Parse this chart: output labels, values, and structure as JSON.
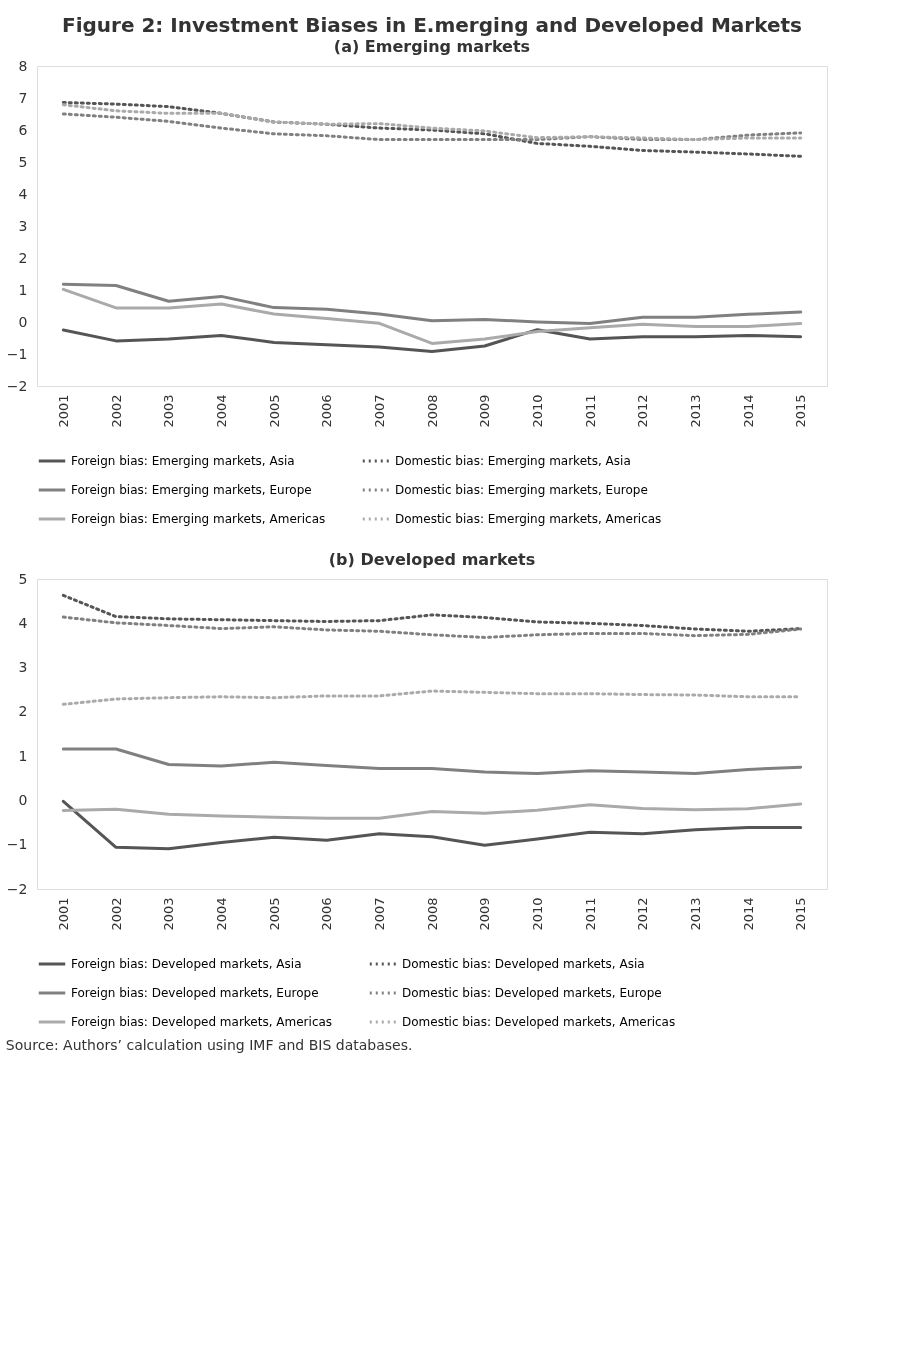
{
  "chart_data": [
    {
      "type": "line",
      "title": "Figure 2: Investment Biases in E.merging and Developed Markets",
      "subtitle": "(a) Emerging markets",
      "categories": [
        "2001",
        "2002",
        "2003",
        "2004",
        "2005",
        "2006",
        "2007",
        "2008",
        "2009",
        "2010",
        "2011",
        "2012",
        "2013",
        "2014",
        "2015"
      ],
      "ylim": [
        -2,
        8
      ],
      "yticks": [
        -2,
        -1,
        0,
        1,
        2,
        3,
        4,
        5,
        6,
        7,
        8
      ],
      "grid": false,
      "legend": "bottom",
      "marker": "none",
      "series": [
        {
          "name": "Foreign bias: Emerging markets, Asia",
          "color": "#555555",
          "line_style": "solid",
          "values": [
            -0.25,
            -0.59,
            -0.53,
            -0.42,
            -0.64,
            -0.71,
            -0.78,
            -0.92,
            -0.75,
            -0.24,
            -0.53,
            -0.46,
            -0.46,
            -0.42,
            -0.46
          ]
        },
        {
          "name": "Domestic bias: Emerging markets, Asia",
          "color": "#555555",
          "line_style": "dotted",
          "values": [
            6.86,
            6.81,
            6.73,
            6.52,
            6.25,
            6.18,
            6.06,
            6.0,
            5.88,
            5.58,
            5.49,
            5.36,
            5.31,
            5.25,
            5.18
          ]
        },
        {
          "name": "Foreign bias: Emerging markets, Europe",
          "color": "#808080",
          "line_style": "solid",
          "values": [
            1.18,
            1.14,
            0.65,
            0.8,
            0.45,
            0.4,
            0.25,
            0.04,
            0.08,
            0.0,
            -0.05,
            0.15,
            0.15,
            0.24,
            0.31
          ]
        },
        {
          "name": "Domestic bias: Emerging markets, Europe",
          "color": "#808080",
          "line_style": "dotted",
          "values": [
            6.5,
            6.4,
            6.27,
            6.06,
            5.88,
            5.82,
            5.7,
            5.7,
            5.7,
            5.7,
            5.79,
            5.7,
            5.7,
            5.84,
            5.91
          ]
        },
        {
          "name": "Foreign bias: Emerging markets, Americas",
          "color": "#aaaaaa",
          "line_style": "solid",
          "values": [
            1.02,
            0.44,
            0.44,
            0.56,
            0.25,
            0.11,
            -0.04,
            -0.67,
            -0.53,
            -0.3,
            -0.18,
            -0.07,
            -0.14,
            -0.14,
            -0.05
          ]
        },
        {
          "name": "Domestic bias: Emerging markets, Americas",
          "color": "#aaaaaa",
          "line_style": "dotted",
          "values": [
            6.79,
            6.6,
            6.52,
            6.52,
            6.25,
            6.18,
            6.2,
            6.06,
            5.97,
            5.76,
            5.79,
            5.75,
            5.7,
            5.75,
            5.75
          ]
        }
      ]
    },
    {
      "type": "line",
      "title": "(b) Developed markets",
      "categories": [
        "2001",
        "2002",
        "2003",
        "2004",
        "2005",
        "2006",
        "2007",
        "2008",
        "2009",
        "2010",
        "2011",
        "2012",
        "2013",
        "2014",
        "2015"
      ],
      "ylim": [
        -2,
        5
      ],
      "yticks": [
        -2,
        -1,
        0,
        1,
        2,
        3,
        4,
        5
      ],
      "grid": false,
      "legend": "bottom",
      "marker": "none",
      "annotations": [
        "Source: Authors’ calculation using IMF and BIS databases."
      ],
      "series": [
        {
          "name": "Foreign bias: Developed markets, Asia",
          "color": "#555555",
          "line_style": "solid",
          "values": [
            -0.02,
            -1.06,
            -1.09,
            -0.95,
            -0.83,
            -0.9,
            -0.75,
            -0.82,
            -1.01,
            -0.87,
            -0.72,
            -0.75,
            -0.66,
            -0.61,
            -0.61
          ]
        },
        {
          "name": "Domestic bias: Developed markets, Asia",
          "color": "#555555",
          "line_style": "dotted",
          "values": [
            4.63,
            4.15,
            4.1,
            4.08,
            4.06,
            4.04,
            4.06,
            4.19,
            4.13,
            4.03,
            4.0,
            3.95,
            3.87,
            3.82,
            3.88
          ]
        },
        {
          "name": "Foreign bias: Developed markets, Europe",
          "color": "#808080",
          "line_style": "solid",
          "values": [
            1.16,
            1.16,
            0.81,
            0.78,
            0.86,
            0.79,
            0.72,
            0.72,
            0.64,
            0.61,
            0.67,
            0.64,
            0.61,
            0.7,
            0.75
          ]
        },
        {
          "name": "Domestic bias: Developed markets, Europe",
          "color": "#808080",
          "line_style": "dotted",
          "values": [
            4.14,
            4.01,
            3.95,
            3.88,
            3.92,
            3.85,
            3.82,
            3.74,
            3.68,
            3.74,
            3.77,
            3.77,
            3.72,
            3.75,
            3.87
          ]
        },
        {
          "name": "Foreign bias: Developed markets, Americas",
          "color": "#aaaaaa",
          "line_style": "solid",
          "values": [
            -0.23,
            -0.2,
            -0.31,
            -0.35,
            -0.38,
            -0.4,
            -0.4,
            -0.25,
            -0.29,
            -0.22,
            -0.1,
            -0.18,
            -0.21,
            -0.19,
            -0.08
          ]
        },
        {
          "name": "Domestic bias: Developed markets, Americas",
          "color": "#aaaaaa",
          "line_style": "dotted",
          "values": [
            2.17,
            2.29,
            2.32,
            2.34,
            2.32,
            2.36,
            2.36,
            2.47,
            2.44,
            2.41,
            2.41,
            2.39,
            2.38,
            2.34,
            2.34
          ]
        }
      ]
    }
  ]
}
